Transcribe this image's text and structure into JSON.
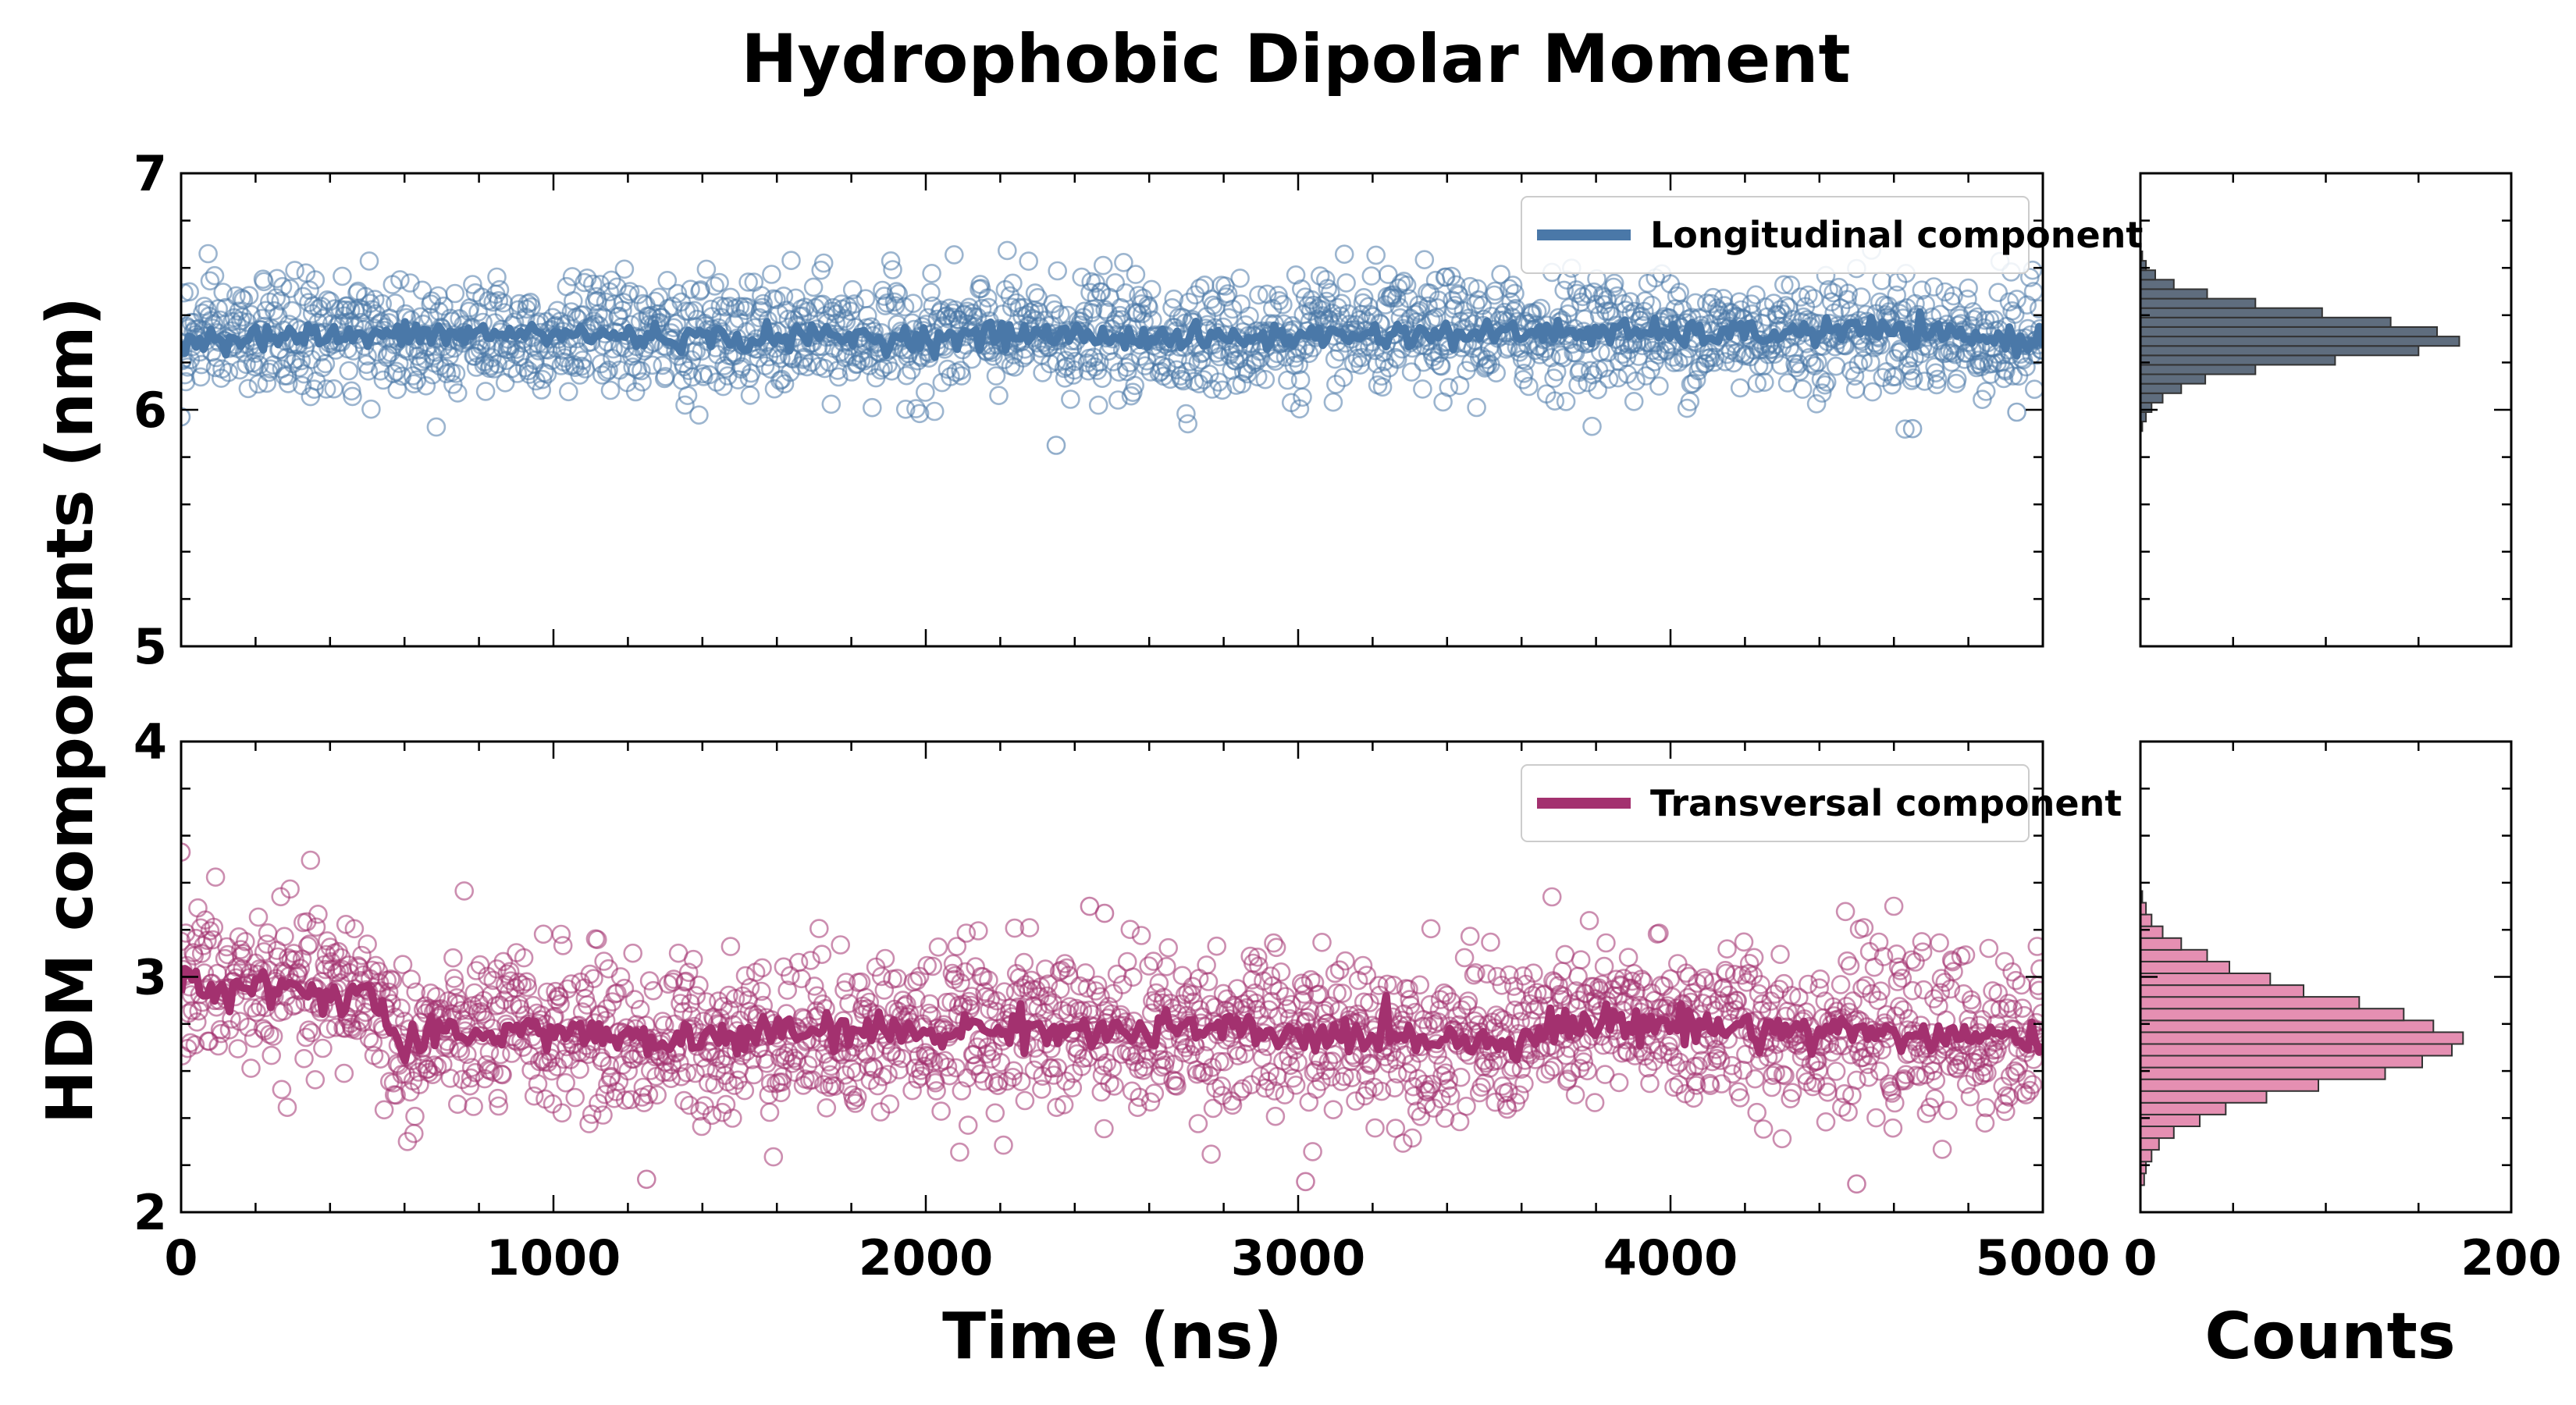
{
  "figure": {
    "title": "Hydrophobic Dipolar Moment",
    "ylabel": "HDM components (nm)"
  },
  "colors": {
    "longitudinal": "#4a78a8",
    "transversal": "#a3316f",
    "hist_longitudinal": "#5f6d7e",
    "hist_transversal": "#e58fb2",
    "hist_edge": "#333333",
    "axes": "#000000"
  },
  "chart_data": [
    {
      "id": "top-timeseries",
      "type": "line",
      "overlay": "scatter-open-circles",
      "legend": "Longitudinal component",
      "legend_position": "top-right",
      "xlim": [
        0,
        5000
      ],
      "ylim": [
        5,
        7
      ],
      "xticks": [
        0,
        1000,
        2000,
        3000,
        4000,
        5000
      ],
      "yticks": [
        5,
        6,
        7
      ],
      "show_xtick_labels": false,
      "grid": false,
      "running_average": {
        "x": [
          0,
          250,
          500,
          750,
          1000,
          1250,
          1500,
          1750,
          2000,
          2250,
          2500,
          2750,
          3000,
          3250,
          3500,
          3750,
          4000,
          4250,
          4500,
          4750,
          5000
        ],
        "y": [
          6.3,
          6.31,
          6.31,
          6.32,
          6.32,
          6.31,
          6.3,
          6.31,
          6.3,
          6.32,
          6.31,
          6.3,
          6.31,
          6.32,
          6.32,
          6.33,
          6.32,
          6.32,
          6.34,
          6.31,
          6.29
        ]
      },
      "scatter_mean": 6.31,
      "scatter_spread": 0.12,
      "scatter_points": 2000,
      "outliers": [
        {
          "x": 2350,
          "y": 5.85
        },
        {
          "x": 4650,
          "y": 5.92
        },
        {
          "x": 4930,
          "y": 5.99
        },
        {
          "x": 0,
          "y": 5.97
        }
      ]
    },
    {
      "id": "bottom-timeseries",
      "type": "line",
      "overlay": "scatter-open-circles",
      "legend": "Transversal component",
      "legend_position": "top-right",
      "xlim": [
        0,
        5000
      ],
      "ylim": [
        2,
        4
      ],
      "xticks": [
        0,
        1000,
        2000,
        3000,
        4000,
        5000
      ],
      "yticks": [
        2,
        3,
        4
      ],
      "xlabel": "Time (ns)",
      "grid": false,
      "running_average": {
        "x": [
          0,
          100,
          250,
          400,
          500,
          600,
          700,
          1000,
          1250,
          1500,
          1750,
          2000,
          2250,
          2500,
          2750,
          3000,
          3250,
          3500,
          3750,
          4000,
          4250,
          4500,
          4750,
          5000
        ],
        "y": [
          3.02,
          2.94,
          2.96,
          2.92,
          2.95,
          2.68,
          2.75,
          2.78,
          2.72,
          2.75,
          2.77,
          2.76,
          2.79,
          2.76,
          2.78,
          2.74,
          2.76,
          2.72,
          2.8,
          2.8,
          2.78,
          2.77,
          2.74,
          2.73
        ]
      },
      "scatter_spread": 0.17,
      "scatter_points": 2000,
      "outliers": [
        {
          "x": 1250,
          "y": 2.14
        },
        {
          "x": 3020,
          "y": 2.13
        },
        {
          "x": 4500,
          "y": 2.12
        },
        {
          "x": 2440,
          "y": 3.3
        },
        {
          "x": 2480,
          "y": 3.27
        },
        {
          "x": 0,
          "y": 3.53
        }
      ]
    },
    {
      "id": "top-histogram",
      "type": "bar",
      "orientation": "horizontal",
      "xlim": [
        0,
        200
      ],
      "ylim": [
        5,
        7
      ],
      "xticks": [
        0,
        200
      ],
      "show_xtick_labels": false,
      "bin_centers": [
        5.93,
        5.97,
        6.01,
        6.05,
        6.09,
        6.13,
        6.17,
        6.21,
        6.25,
        6.29,
        6.33,
        6.37,
        6.41,
        6.45,
        6.49,
        6.53,
        6.57,
        6.61,
        6.65
      ],
      "counts": [
        1,
        3,
        6,
        12,
        22,
        35,
        62,
        105,
        150,
        172,
        160,
        135,
        98,
        62,
        36,
        18,
        8,
        3,
        1
      ]
    },
    {
      "id": "bottom-histogram",
      "type": "bar",
      "orientation": "horizontal",
      "xlim": [
        0,
        200
      ],
      "ylim": [
        2,
        4
      ],
      "xticks": [
        0,
        200
      ],
      "xlabel": "Counts",
      "bin_centers": [
        2.14,
        2.19,
        2.24,
        2.29,
        2.34,
        2.39,
        2.44,
        2.49,
        2.54,
        2.59,
        2.64,
        2.69,
        2.74,
        2.79,
        2.84,
        2.89,
        2.94,
        2.99,
        3.04,
        3.09,
        3.14,
        3.19,
        3.24,
        3.29,
        3.34
      ],
      "counts": [
        2,
        3,
        6,
        10,
        18,
        32,
        46,
        68,
        96,
        132,
        152,
        168,
        174,
        158,
        142,
        118,
        88,
        70,
        48,
        36,
        22,
        12,
        6,
        3,
        1
      ]
    }
  ]
}
